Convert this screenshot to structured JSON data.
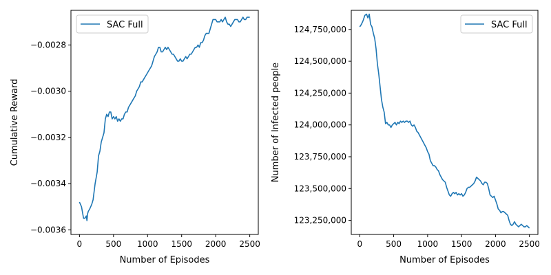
{
  "colors": {
    "series": "#1f77b4",
    "axis": "#000000",
    "legend_border": "#cccccc",
    "background": "#ffffff"
  },
  "chart_data": [
    {
      "type": "line",
      "title": "",
      "xlabel": "Number of Episodes",
      "ylabel": "Cumulative Reward",
      "xlim": [
        -125,
        2625
      ],
      "ylim": [
        -0.00362,
        -0.00265
      ],
      "xticks": [
        0,
        500,
        1000,
        1500,
        2000,
        2500
      ],
      "xtick_labels": [
        "0",
        "500",
        "1000",
        "1500",
        "2000",
        "2500"
      ],
      "yticks": [
        -0.0036,
        -0.0034,
        -0.0032,
        -0.003,
        -0.0028
      ],
      "ytick_labels": [
        "−0.0036",
        "−0.0034",
        "−0.0032",
        "−0.0030",
        "−0.0028"
      ],
      "grid": false,
      "legend": {
        "position": "upper-left"
      },
      "series": [
        {
          "name": "SAC Full",
          "x": [
            0,
            30,
            60,
            80,
            100,
            110,
            120,
            130,
            150,
            180,
            200,
            230,
            260,
            280,
            300,
            320,
            340,
            360,
            380,
            400,
            420,
            440,
            460,
            480,
            500,
            520,
            540,
            560,
            580,
            600,
            620,
            640,
            660,
            680,
            700,
            720,
            740,
            760,
            780,
            800,
            820,
            840,
            860,
            880,
            900,
            920,
            940,
            960,
            980,
            1000,
            1020,
            1040,
            1060,
            1080,
            1100,
            1120,
            1140,
            1160,
            1180,
            1200,
            1220,
            1240,
            1260,
            1280,
            1300,
            1320,
            1340,
            1360,
            1380,
            1400,
            1420,
            1440,
            1460,
            1480,
            1500,
            1520,
            1540,
            1560,
            1580,
            1600,
            1620,
            1640,
            1660,
            1680,
            1700,
            1720,
            1740,
            1760,
            1780,
            1800,
            1820,
            1840,
            1860,
            1880,
            1900,
            1920,
            1940,
            1960,
            1980,
            2000,
            2020,
            2040,
            2060,
            2080,
            2100,
            2120,
            2140,
            2160,
            2180,
            2200,
            2220,
            2240,
            2260,
            2280,
            2300,
            2320,
            2340,
            2360,
            2380,
            2400,
            2420,
            2440,
            2460,
            2480,
            2500
          ],
          "y": [
            -0.00348,
            -0.0035,
            -0.00355,
            -0.00355,
            -0.00354,
            -0.00356,
            -0.00353,
            -0.00352,
            -0.00351,
            -0.00349,
            -0.00347,
            -0.0034,
            -0.00335,
            -0.00328,
            -0.00326,
            -0.00322,
            -0.0032,
            -0.00318,
            -0.00312,
            -0.0031,
            -0.00311,
            -0.00309,
            -0.00309,
            -0.00312,
            -0.00311,
            -0.00312,
            -0.00311,
            -0.00313,
            -0.00312,
            -0.00313,
            -0.00312,
            -0.00312,
            -0.0031,
            -0.00309,
            -0.00309,
            -0.00307,
            -0.00306,
            -0.00305,
            -0.00304,
            -0.00303,
            -0.00302,
            -0.003,
            -0.00299,
            -0.00298,
            -0.00296,
            -0.00296,
            -0.00295,
            -0.00294,
            -0.00293,
            -0.00292,
            -0.00291,
            -0.0029,
            -0.00289,
            -0.00287,
            -0.00285,
            -0.00284,
            -0.00283,
            -0.00281,
            -0.00281,
            -0.00283,
            -0.00283,
            -0.00282,
            -0.00281,
            -0.00282,
            -0.00281,
            -0.00282,
            -0.00283,
            -0.00284,
            -0.00284,
            -0.00285,
            -0.00286,
            -0.00287,
            -0.00287,
            -0.00286,
            -0.00287,
            -0.00287,
            -0.00286,
            -0.00285,
            -0.00286,
            -0.00285,
            -0.00284,
            -0.00284,
            -0.00283,
            -0.00282,
            -0.00281,
            -0.00281,
            -0.0028,
            -0.00281,
            -0.00279,
            -0.00279,
            -0.00278,
            -0.00276,
            -0.00275,
            -0.00275,
            -0.00275,
            -0.00273,
            -0.00271,
            -0.00269,
            -0.00269,
            -0.00269,
            -0.0027,
            -0.0027,
            -0.0027,
            -0.00269,
            -0.0027,
            -0.00269,
            -0.00268,
            -0.0027,
            -0.00271,
            -0.00271,
            -0.00272,
            -0.00271,
            -0.0027,
            -0.00269,
            -0.00269,
            -0.00269,
            -0.0027,
            -0.0027,
            -0.00269,
            -0.00268,
            -0.00269,
            -0.00269,
            -0.00268,
            -0.00268,
            -0.00268
          ]
        }
      ]
    },
    {
      "type": "line",
      "title": "",
      "xlabel": "Number of Episodes",
      "ylabel": "Number of Infected people",
      "xlim": [
        -125,
        2625
      ],
      "ylim": [
        123140000,
        124900000
      ],
      "xticks": [
        0,
        500,
        1000,
        1500,
        2000,
        2500
      ],
      "xtick_labels": [
        "0",
        "500",
        "1000",
        "1500",
        "2000",
        "2500"
      ],
      "yticks": [
        123250000,
        123500000,
        123750000,
        124000000,
        124250000,
        124500000,
        124750000
      ],
      "ytick_labels": [
        "123,250,000",
        "123,500,000",
        "123,750,000",
        "124,000,000",
        "124,250,000",
        "124,500,000",
        "124,750,000"
      ],
      "grid": false,
      "legend": {
        "position": "upper-right"
      },
      "series": [
        {
          "name": "SAC Full",
          "x": [
            0,
            25,
            50,
            75,
            100,
            120,
            140,
            160,
            180,
            200,
            220,
            240,
            260,
            280,
            300,
            320,
            340,
            360,
            380,
            400,
            420,
            440,
            460,
            480,
            500,
            520,
            540,
            560,
            580,
            600,
            620,
            640,
            660,
            680,
            700,
            720,
            740,
            760,
            780,
            800,
            820,
            840,
            860,
            880,
            900,
            920,
            940,
            960,
            980,
            1000,
            1020,
            1040,
            1060,
            1080,
            1100,
            1120,
            1140,
            1160,
            1180,
            1200,
            1220,
            1240,
            1260,
            1280,
            1300,
            1320,
            1340,
            1360,
            1380,
            1400,
            1420,
            1440,
            1460,
            1480,
            1500,
            1520,
            1540,
            1560,
            1580,
            1600,
            1620,
            1640,
            1660,
            1680,
            1700,
            1720,
            1740,
            1760,
            1780,
            1800,
            1820,
            1840,
            1860,
            1880,
            1900,
            1920,
            1940,
            1960,
            1980,
            2000,
            2020,
            2040,
            2060,
            2080,
            2100,
            2120,
            2140,
            2160,
            2180,
            2200,
            2220,
            2240,
            2260,
            2280,
            2300,
            2320,
            2340,
            2360,
            2380,
            2400,
            2420,
            2440,
            2460,
            2480,
            2500
          ],
          "y": [
            124770000,
            124790000,
            124820000,
            124860000,
            124870000,
            124840000,
            124870000,
            124790000,
            124770000,
            124720000,
            124680000,
            124600000,
            124480000,
            124400000,
            124300000,
            124200000,
            124140000,
            124100000,
            124010000,
            124020000,
            124000000,
            124000000,
            123980000,
            124000000,
            124010000,
            124020000,
            124000000,
            124020000,
            124010000,
            124030000,
            124020000,
            124030000,
            124020000,
            124030000,
            124030000,
            124020000,
            124030000,
            124000000,
            123990000,
            124000000,
            123980000,
            123950000,
            123940000,
            123920000,
            123900000,
            123880000,
            123860000,
            123840000,
            123820000,
            123790000,
            123770000,
            123720000,
            123700000,
            123680000,
            123680000,
            123670000,
            123650000,
            123640000,
            123610000,
            123590000,
            123570000,
            123560000,
            123550000,
            123510000,
            123480000,
            123450000,
            123440000,
            123460000,
            123470000,
            123460000,
            123470000,
            123450000,
            123460000,
            123450000,
            123460000,
            123440000,
            123450000,
            123470000,
            123500000,
            123510000,
            123510000,
            123520000,
            123530000,
            123540000,
            123560000,
            123590000,
            123580000,
            123570000,
            123560000,
            123540000,
            123530000,
            123550000,
            123550000,
            123540000,
            123500000,
            123450000,
            123440000,
            123430000,
            123440000,
            123410000,
            123380000,
            123340000,
            123330000,
            123310000,
            123320000,
            123320000,
            123310000,
            123300000,
            123290000,
            123250000,
            123220000,
            123210000,
            123220000,
            123240000,
            123220000,
            123210000,
            123200000,
            123210000,
            123220000,
            123210000,
            123200000,
            123200000,
            123210000,
            123200000,
            123190000
          ]
        }
      ]
    }
  ]
}
